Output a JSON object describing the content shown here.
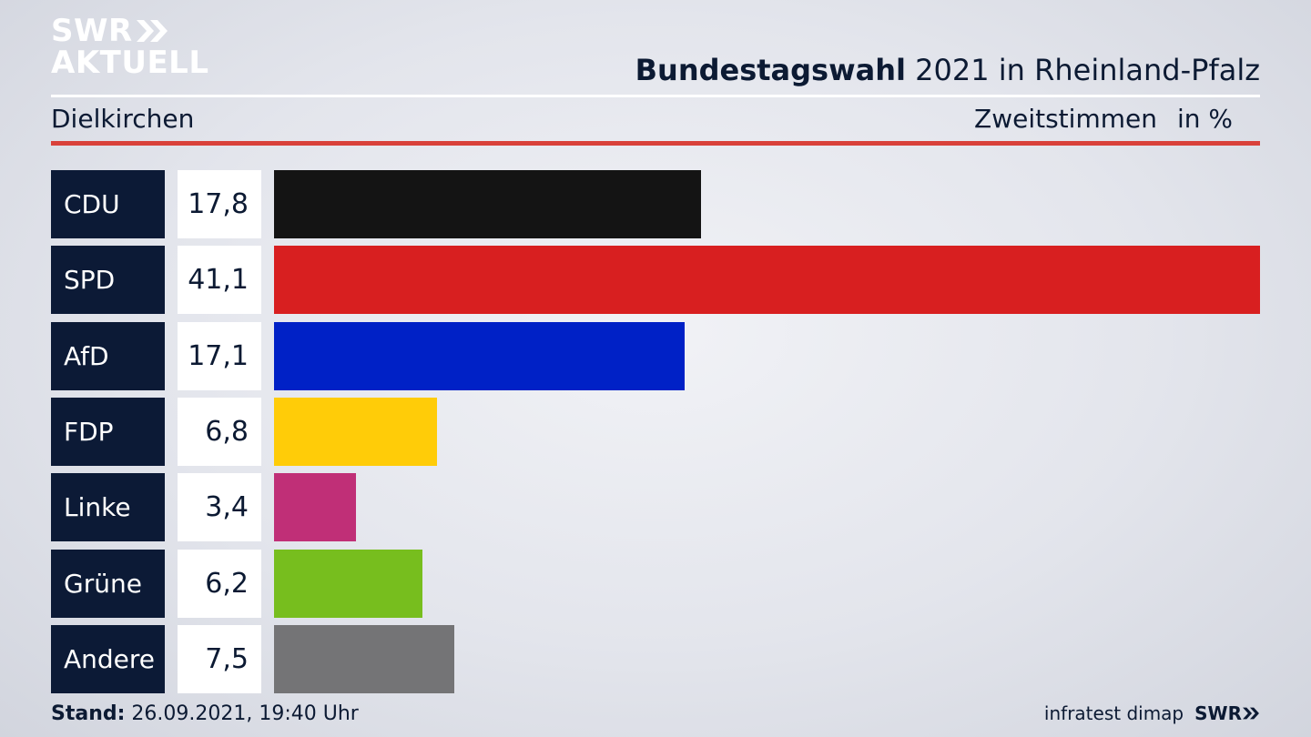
{
  "brand": {
    "logo_line1": "SWR",
    "logo_line2": "AKTUELL",
    "footer_logo": "SWR"
  },
  "header": {
    "title_bold": "Bundestagswahl",
    "title_rest": " 2021 in Rheinland-Pfalz",
    "place": "Dielkirchen",
    "metric": "Zweitstimmen",
    "unit": "in %"
  },
  "footer": {
    "stand_label": "Stand:",
    "stand_value": " 26.09.2021, 19:40 Uhr",
    "source": "infratest dimap"
  },
  "colors": {
    "accent_red": "#d9413a",
    "label_bg": "#0c1a36"
  },
  "chart_data": {
    "type": "bar",
    "orientation": "horizontal",
    "categories": [
      "CDU",
      "SPD",
      "AfD",
      "FDP",
      "Linke",
      "Grüne",
      "Andere"
    ],
    "values": [
      17.8,
      41.1,
      17.1,
      6.8,
      3.4,
      6.2,
      7.5
    ],
    "value_labels": [
      "17,8",
      "41,1",
      "17,1",
      "6,8",
      "3,4",
      "6,2",
      "7,5"
    ],
    "colors": [
      "#141414",
      "#d81f20",
      "#0021c6",
      "#ffcc08",
      "#c02f77",
      "#77be1e",
      "#747476"
    ],
    "xlim": [
      0,
      41.1
    ],
    "grid": false
  }
}
